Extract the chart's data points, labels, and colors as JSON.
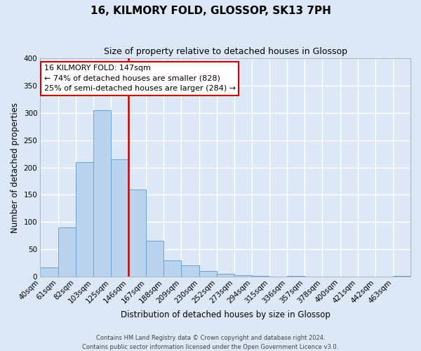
{
  "title": "16, KILMORY FOLD, GLOSSOP, SK13 7PH",
  "subtitle": "Size of property relative to detached houses in Glossop",
  "xlabel": "Distribution of detached houses by size in Glossop",
  "ylabel": "Number of detached properties",
  "bin_labels": [
    "40sqm",
    "61sqm",
    "82sqm",
    "103sqm",
    "125sqm",
    "146sqm",
    "167sqm",
    "188sqm",
    "209sqm",
    "230sqm",
    "252sqm",
    "273sqm",
    "294sqm",
    "315sqm",
    "336sqm",
    "357sqm",
    "378sqm",
    "400sqm",
    "421sqm",
    "442sqm",
    "463sqm"
  ],
  "bar_values": [
    17,
    90,
    210,
    305,
    215,
    160,
    65,
    30,
    20,
    10,
    5,
    3,
    1,
    0,
    1,
    0,
    0,
    0,
    0,
    0,
    1
  ],
  "bar_color": "#b8d4ee",
  "bar_edge_color": "#6aa0d0",
  "vline_x_index": 5,
  "vline_color": "#cc0000",
  "ylim": [
    0,
    400
  ],
  "yticks": [
    0,
    50,
    100,
    150,
    200,
    250,
    300,
    350,
    400
  ],
  "annotation_title": "16 KILMORY FOLD: 147sqm",
  "annotation_line1": "← 74% of detached houses are smaller (828)",
  "annotation_line2": "25% of semi-detached houses are larger (284) →",
  "annotation_box_facecolor": "#ffffff",
  "annotation_box_edgecolor": "#cc0000",
  "footer_line1": "Contains HM Land Registry data © Crown copyright and database right 2024.",
  "footer_line2": "Contains public sector information licensed under the Open Government Licence v3.0.",
  "bg_color": "#dce8f5",
  "grid_color": "#ffffff",
  "title_fontsize": 11,
  "subtitle_fontsize": 9,
  "ylabel_fontsize": 8.5,
  "xlabel_fontsize": 8.5,
  "tick_fontsize": 7.5,
  "annotation_fontsize": 8,
  "footer_fontsize": 6
}
